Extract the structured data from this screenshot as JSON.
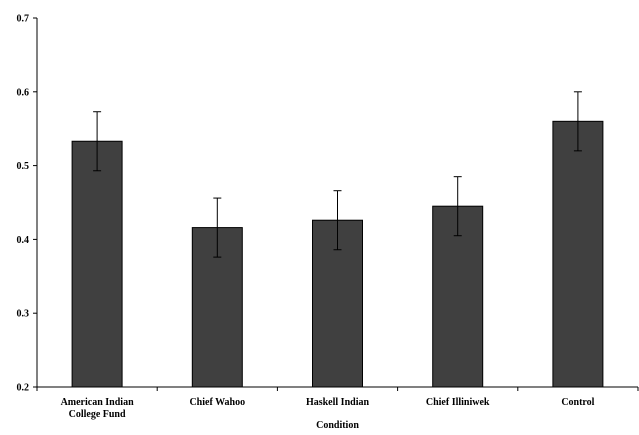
{
  "chart_data": {
    "type": "bar",
    "title": "",
    "xlabel": "Condition",
    "ylabel": "",
    "categories": [
      [
        "American Indian",
        "College Fund"
      ],
      [
        "Chief Wahoo"
      ],
      [
        "Haskell Indian"
      ],
      [
        "Chief Illiniwek"
      ],
      [
        "Control"
      ]
    ],
    "values": [
      0.533,
      0.416,
      0.426,
      0.445,
      0.56
    ],
    "error": [
      0.04,
      0.04,
      0.04,
      0.04,
      0.04
    ],
    "ylim": [
      0.2,
      0.7
    ],
    "yticks": [
      "0.2",
      "0.3",
      "0.4",
      "0.5",
      "0.6",
      "0.7"
    ],
    "grid": false,
    "bar_color": "#404040"
  }
}
